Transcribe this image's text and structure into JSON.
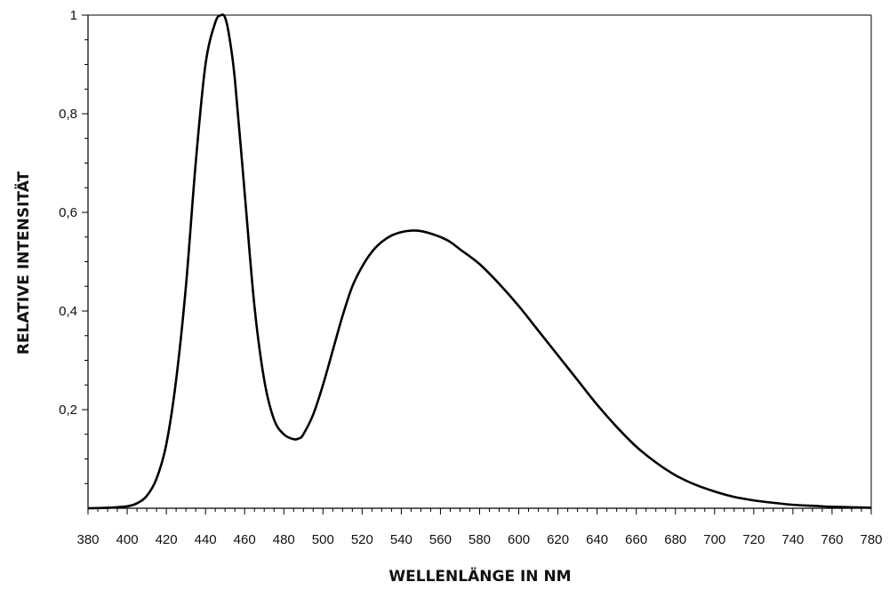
{
  "chart_data": {
    "type": "line",
    "title": "",
    "xlabel": "WELLENLÄNGE IN NM",
    "ylabel": "RELATIVE INTENSITÄT",
    "xlim": [
      380,
      780
    ],
    "ylim": [
      0,
      1
    ],
    "x_ticks": [
      "380",
      "400",
      "420",
      "440",
      "460",
      "480",
      "500",
      "520",
      "540",
      "560",
      "580",
      "600",
      "620",
      "640",
      "660",
      "680",
      "700",
      "720",
      "740",
      "760",
      "780"
    ],
    "y_ticks": [
      "0,2",
      "0,4",
      "0,6",
      "0,8",
      "1"
    ],
    "grid": false,
    "legend": "none",
    "line_color": "#000000",
    "series": [
      {
        "x": [
          380,
          390,
          400,
          405,
          410,
          415,
          420,
          425,
          430,
          435,
          440,
          445,
          448,
          450,
          452,
          455,
          460,
          465,
          470,
          475,
          480,
          485,
          488,
          490,
          495,
          500,
          505,
          510,
          515,
          520,
          525,
          530,
          535,
          540,
          545,
          550,
          555,
          560,
          565,
          570,
          580,
          590,
          600,
          610,
          620,
          630,
          640,
          650,
          660,
          670,
          680,
          690,
          700,
          710,
          720,
          730,
          740,
          750,
          760,
          770,
          780
        ],
        "y": [
          0.0,
          0.001,
          0.004,
          0.01,
          0.025,
          0.06,
          0.13,
          0.26,
          0.45,
          0.7,
          0.9,
          0.985,
          1.0,
          0.995,
          0.96,
          0.87,
          0.64,
          0.41,
          0.26,
          0.18,
          0.15,
          0.14,
          0.142,
          0.15,
          0.19,
          0.25,
          0.32,
          0.39,
          0.45,
          0.49,
          0.52,
          0.54,
          0.553,
          0.56,
          0.563,
          0.562,
          0.557,
          0.55,
          0.54,
          0.525,
          0.495,
          0.455,
          0.41,
          0.36,
          0.31,
          0.26,
          0.21,
          0.165,
          0.125,
          0.093,
          0.067,
          0.048,
          0.034,
          0.023,
          0.016,
          0.011,
          0.007,
          0.005,
          0.003,
          0.002,
          0.001
        ]
      }
    ]
  }
}
